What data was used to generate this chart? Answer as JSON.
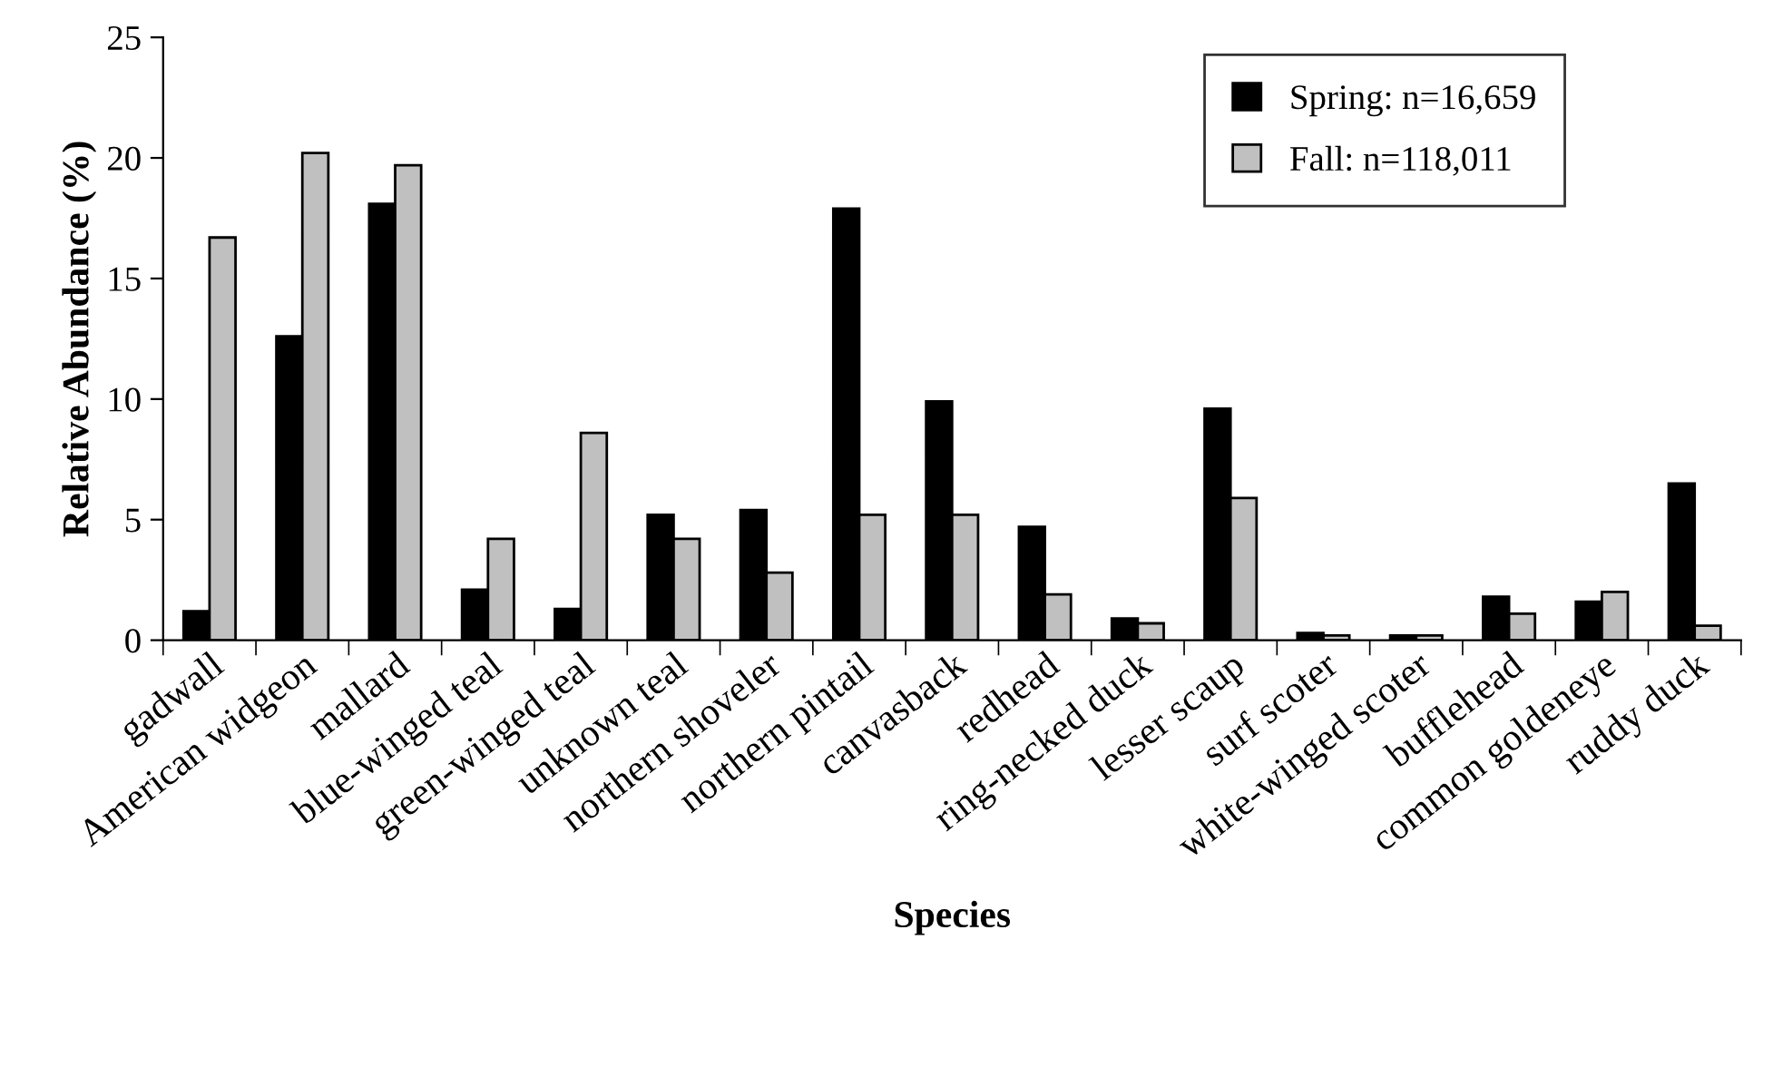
{
  "chart_data": {
    "type": "bar",
    "xlabel": "Species",
    "ylabel": "Relative Abundance (%)",
    "categories": [
      "gadwall",
      "American widgeon",
      "mallard",
      "blue-winged teal",
      "green-winged teal",
      "unknown teal",
      "northern shoveler",
      "northern pintail",
      "canvasback",
      "redhead",
      "ring-necked duck",
      "lesser scaup",
      "surf scoter",
      "white-winged scoter",
      "bufflehead",
      "common goldeneye",
      "ruddy duck"
    ],
    "series": [
      {
        "name": "Spring: n=16,659",
        "color": "#000000",
        "values": [
          1.2,
          12.6,
          18.1,
          2.1,
          1.3,
          5.2,
          5.4,
          17.9,
          9.9,
          4.7,
          0.9,
          9.6,
          0.3,
          0.2,
          1.8,
          1.6,
          6.5
        ]
      },
      {
        "name": "Fall: n=118,011",
        "color": "#c0c0c0",
        "values": [
          16.7,
          20.2,
          19.7,
          4.2,
          8.6,
          4.2,
          2.8,
          5.2,
          5.2,
          1.9,
          0.7,
          5.9,
          0.2,
          0.2,
          1.1,
          2.0,
          0.6
        ]
      }
    ],
    "ylim": [
      0,
      25
    ],
    "yticks": [
      0,
      5,
      10,
      15,
      20,
      25
    ],
    "grid": false,
    "legend": "top right"
  }
}
